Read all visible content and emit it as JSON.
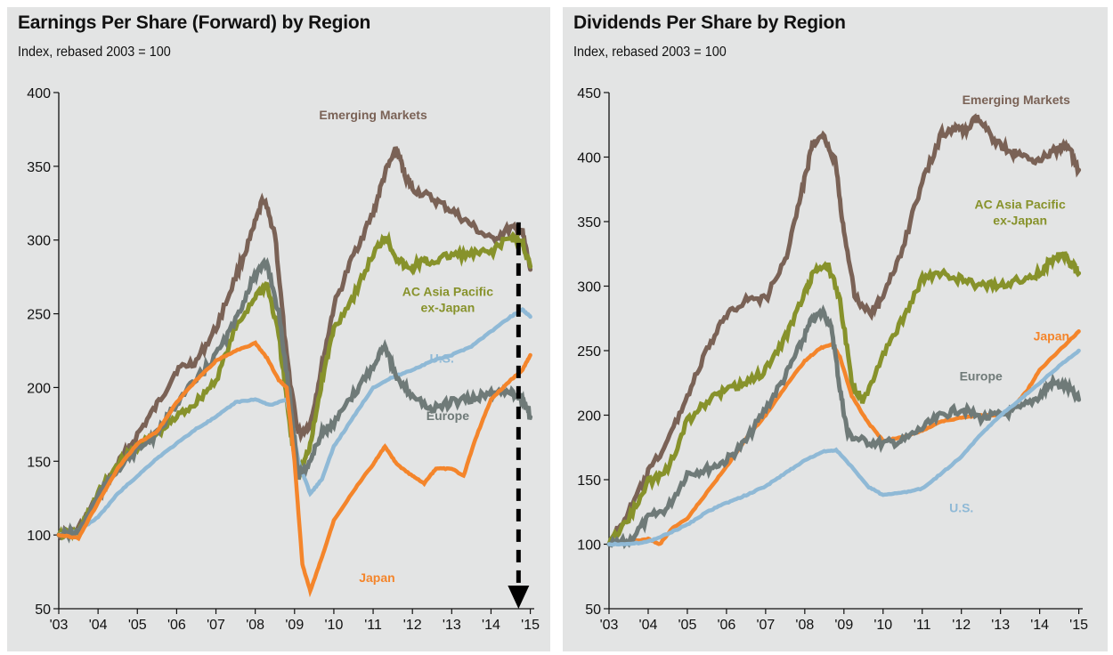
{
  "chart_data": [
    {
      "type": "line",
      "title": "Earnings Per Share (Forward) by Region",
      "subtitle": "Index, rebased 2003 = 100",
      "xlabel": "",
      "ylabel": "",
      "ylim": [
        50,
        400
      ],
      "yticks": [
        50,
        100,
        150,
        200,
        250,
        300,
        350,
        400
      ],
      "xlim": [
        2003,
        2015.1
      ],
      "xticks": [
        2003,
        2004,
        2005,
        2006,
        2007,
        2008,
        2009,
        2010,
        2011,
        2012,
        2013,
        2014,
        2015
      ],
      "xtick_labels": [
        "'03",
        "'04",
        "'05",
        "'06",
        "'07",
        "'08",
        "'09",
        "'10",
        "'11",
        "'12",
        "'13",
        "'14",
        "'15"
      ],
      "grid": false,
      "annotation": {
        "type": "dashed-arrow-down",
        "x": 2014.7,
        "y_from": 312,
        "y_to": 50
      },
      "series": [
        {
          "name": "Emerging Markets",
          "color": "#7a6256",
          "label_at": [
            2011.0,
            382
          ],
          "x": [
            2003,
            2003.5,
            2004,
            2004.5,
            2005,
            2005.5,
            2006,
            2006.5,
            2007,
            2007.5,
            2007.9,
            2008.2,
            2008.5,
            2008.8,
            2009.1,
            2009.4,
            2009.7,
            2010,
            2010.5,
            2011,
            2011.3,
            2011.6,
            2011.8,
            2012,
            2012.5,
            2013,
            2013.5,
            2014,
            2014.5,
            2014.8,
            2015
          ],
          "y": [
            100,
            104,
            125,
            148,
            168,
            188,
            212,
            218,
            240,
            275,
            303,
            328,
            305,
            220,
            168,
            175,
            215,
            255,
            290,
            318,
            345,
            362,
            345,
            335,
            328,
            320,
            310,
            300,
            308,
            305,
            280
          ]
        },
        {
          "name": "AC Asia Pacific ex-Japan",
          "color": "#87922b",
          "label_at": [
            2012.9,
            262
          ],
          "x": [
            2003,
            2003.5,
            2004,
            2004.5,
            2005,
            2005.5,
            2006,
            2006.5,
            2007,
            2007.5,
            2008,
            2008.3,
            2008.6,
            2008.9,
            2009.1,
            2009.4,
            2009.7,
            2010,
            2010.5,
            2011,
            2011.3,
            2011.6,
            2011.9,
            2012.2,
            2012.5,
            2013,
            2013.5,
            2014,
            2014.5,
            2014.8,
            2015
          ],
          "y": [
            100,
            102,
            128,
            148,
            160,
            168,
            180,
            190,
            205,
            240,
            262,
            270,
            235,
            170,
            140,
            160,
            205,
            240,
            262,
            290,
            303,
            288,
            280,
            285,
            285,
            290,
            290,
            292,
            302,
            298,
            282
          ]
        },
        {
          "name": "U.S.",
          "color": "#8fb9d6",
          "label_at": [
            2012.75,
            217
          ],
          "x": [
            2003,
            2003.5,
            2004,
            2004.5,
            2005,
            2005.5,
            2006,
            2006.5,
            2007,
            2007.5,
            2008,
            2008.4,
            2008.8,
            2009.1,
            2009.4,
            2009.7,
            2010,
            2010.5,
            2011,
            2011.5,
            2012,
            2012.5,
            2013,
            2013.5,
            2014,
            2014.5,
            2014.8,
            2015
          ],
          "y": [
            100,
            103,
            112,
            128,
            140,
            152,
            162,
            172,
            180,
            190,
            192,
            188,
            192,
            150,
            128,
            138,
            160,
            180,
            200,
            207,
            212,
            218,
            222,
            228,
            238,
            248,
            253,
            248
          ]
        },
        {
          "name": "Europe",
          "color": "#6f7a78",
          "label_at": [
            2012.9,
            178
          ],
          "x": [
            2003,
            2003.5,
            2004,
            2004.5,
            2005,
            2005.5,
            2006,
            2006.5,
            2007,
            2007.5,
            2007.9,
            2008.3,
            2008.6,
            2008.9,
            2009.1,
            2009.4,
            2009.7,
            2010,
            2010.5,
            2011,
            2011.3,
            2011.6,
            2012,
            2012.5,
            2013,
            2013.5,
            2014,
            2014.5,
            2014.8,
            2015
          ],
          "y": [
            100,
            102,
            126,
            145,
            158,
            168,
            190,
            205,
            222,
            245,
            272,
            285,
            250,
            190,
            140,
            150,
            170,
            175,
            195,
            215,
            230,
            205,
            195,
            185,
            190,
            192,
            196,
            198,
            192,
            180
          ]
        },
        {
          "name": "Japan",
          "color": "#f4852b",
          "label_at": [
            2011.1,
            68
          ],
          "x": [
            2003,
            2003.5,
            2004,
            2004.5,
            2005,
            2005.5,
            2006,
            2006.5,
            2007,
            2007.5,
            2008,
            2008.3,
            2008.6,
            2008.8,
            2009,
            2009.2,
            2009.4,
            2009.7,
            2010,
            2010.5,
            2011,
            2011.3,
            2011.6,
            2012,
            2012.3,
            2012.6,
            2013,
            2013.3,
            2013.6,
            2014,
            2014.5,
            2014.8,
            2015
          ],
          "y": [
            100,
            98,
            122,
            145,
            162,
            170,
            190,
            205,
            218,
            225,
            230,
            220,
            205,
            200,
            150,
            80,
            62,
            85,
            110,
            130,
            148,
            160,
            148,
            140,
            135,
            145,
            145,
            140,
            165,
            192,
            205,
            212,
            222
          ]
        }
      ]
    },
    {
      "type": "line",
      "title": "Dividends Per Share by Region",
      "subtitle": "Index, rebased 2003 = 100",
      "xlabel": "",
      "ylabel": "",
      "ylim": [
        50,
        450
      ],
      "yticks": [
        50,
        100,
        150,
        200,
        250,
        300,
        350,
        400,
        450
      ],
      "xlim": [
        2003,
        2015.1
      ],
      "xticks": [
        2003,
        2004,
        2005,
        2006,
        2007,
        2008,
        2009,
        2010,
        2011,
        2012,
        2013,
        2014,
        2015
      ],
      "xtick_labels": [
        "'03",
        "'04",
        "'05",
        "'06",
        "'07",
        "'08",
        "'09",
        "'10",
        "'11",
        "'12",
        "'13",
        "'14",
        "'15"
      ],
      "grid": false,
      "series": [
        {
          "name": "Emerging Markets",
          "color": "#7a6256",
          "label_at": [
            2013.4,
            441
          ],
          "x": [
            2003,
            2003.5,
            2004,
            2004.5,
            2005,
            2005.5,
            2006,
            2006.5,
            2007,
            2007.5,
            2007.9,
            2008.2,
            2008.5,
            2008.8,
            2009,
            2009.3,
            2009.7,
            2010,
            2010.5,
            2011,
            2011.5,
            2011.8,
            2012.1,
            2012.4,
            2012.8,
            2013.2,
            2013.6,
            2014,
            2014.4,
            2014.7,
            2015
          ],
          "y": [
            100,
            125,
            155,
            180,
            215,
            250,
            278,
            290,
            290,
            320,
            370,
            410,
            415,
            395,
            340,
            290,
            280,
            290,
            330,
            380,
            418,
            422,
            420,
            430,
            415,
            405,
            400,
            398,
            405,
            410,
            390
          ]
        },
        {
          "name": "AC Asia Pacific ex-Japan",
          "color": "#87922b",
          "label_at": [
            2013.5,
            360
          ],
          "x": [
            2003,
            2003.5,
            2004,
            2004.5,
            2005,
            2005.5,
            2006,
            2006.5,
            2007,
            2007.5,
            2008,
            2008.3,
            2008.6,
            2008.9,
            2009.2,
            2009.5,
            2010,
            2010.5,
            2011,
            2011.5,
            2012,
            2012.5,
            2013,
            2013.5,
            2014,
            2014.3,
            2014.6,
            2014.8,
            2015
          ],
          "y": [
            100,
            120,
            148,
            158,
            195,
            210,
            220,
            225,
            235,
            260,
            295,
            315,
            315,
            290,
            225,
            210,
            245,
            275,
            305,
            310,
            305,
            300,
            302,
            305,
            310,
            320,
            325,
            318,
            310
          ]
        },
        {
          "name": "Japan",
          "color": "#f4852b",
          "label_at": [
            2014.3,
            258
          ],
          "x": [
            2003,
            2003.5,
            2004,
            2004.3,
            2004.6,
            2005,
            2005.5,
            2006,
            2006.5,
            2007,
            2007.5,
            2008,
            2008.4,
            2008.7,
            2008.9,
            2009.2,
            2009.6,
            2010,
            2010.5,
            2011,
            2011.5,
            2012,
            2012.5,
            2013,
            2013.3,
            2013.7,
            2014,
            2014.5,
            2015
          ],
          "y": [
            100,
            102,
            104,
            100,
            112,
            120,
            140,
            160,
            182,
            200,
            222,
            242,
            252,
            255,
            245,
            215,
            195,
            180,
            183,
            188,
            195,
            198,
            200,
            200,
            205,
            220,
            235,
            250,
            265
          ]
        },
        {
          "name": "Europe",
          "color": "#6f7a78",
          "label_at": [
            2012.5,
            227
          ],
          "x": [
            2003,
            2003.5,
            2004,
            2004.5,
            2005,
            2005.5,
            2006,
            2006.5,
            2007,
            2007.5,
            2007.9,
            2008.2,
            2008.5,
            2008.7,
            2008.9,
            2009.1,
            2009.5,
            2010,
            2010.5,
            2011,
            2011.5,
            2012,
            2012.5,
            2013,
            2013.5,
            2014,
            2014.3,
            2014.7,
            2015
          ],
          "y": [
            100,
            102,
            120,
            128,
            155,
            158,
            165,
            180,
            205,
            230,
            255,
            275,
            280,
            265,
            220,
            185,
            180,
            178,
            180,
            190,
            200,
            205,
            198,
            200,
            205,
            215,
            225,
            222,
            212
          ]
        },
        {
          "name": "U.S.",
          "color": "#8fb9d6",
          "label_at": [
            2012.0,
            125
          ],
          "x": [
            2003,
            2003.5,
            2004,
            2004.5,
            2005,
            2005.5,
            2006,
            2006.5,
            2007,
            2007.5,
            2008,
            2008.5,
            2008.8,
            2009.2,
            2009.6,
            2010,
            2010.5,
            2011,
            2011.5,
            2012,
            2012.5,
            2013,
            2013.5,
            2014,
            2014.5,
            2015
          ],
          "y": [
            100,
            100,
            102,
            108,
            115,
            125,
            132,
            138,
            145,
            155,
            165,
            172,
            173,
            160,
            145,
            138,
            140,
            143,
            155,
            168,
            185,
            200,
            212,
            225,
            238,
            250
          ]
        }
      ]
    }
  ]
}
